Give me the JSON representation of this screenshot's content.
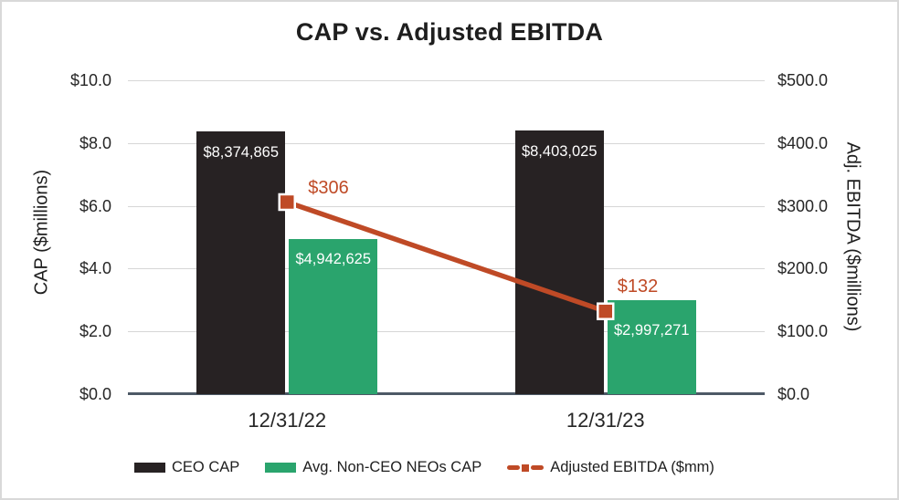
{
  "title": "CAP vs. Adjusted EBITDA",
  "chart_data": {
    "type": "bar",
    "subtype": "grouped bars with secondary-axis line",
    "title": "CAP vs. Adjusted EBITDA",
    "categories": [
      "12/31/22",
      "12/31/23"
    ],
    "series": [
      {
        "name": "CEO CAP",
        "type": "bar",
        "axis": "left",
        "color": "#272223",
        "values": [
          8374865,
          8403025
        ],
        "point_labels": [
          "$8,374,865",
          "$8,403,025"
        ]
      },
      {
        "name": "Avg. Non-CEO NEOs CAP",
        "type": "bar",
        "axis": "left",
        "color": "#2aa46d",
        "values": [
          4942625,
          2997271
        ],
        "point_labels": [
          "$4,942,625",
          "$2,997,271"
        ]
      },
      {
        "name": "Adjusted EBITDA ($mm)",
        "type": "line",
        "axis": "right",
        "color": "#bf4a26",
        "values": [
          306,
          132
        ],
        "point_labels": [
          "$306",
          "$132"
        ]
      }
    ],
    "left_axis": {
      "title": "CAP ($millions)",
      "ticks": [
        "$10.0",
        "$8.0",
        "$6.0",
        "$4.0",
        "$2.0",
        "$0.0"
      ],
      "min": 0,
      "max": 10000000,
      "unit": "$millions"
    },
    "right_axis": {
      "title": "Adj. EBITDA ($millions)",
      "ticks": [
        "$500.0",
        "$400.0",
        "$300.0",
        "$200.0",
        "$100.0",
        "$0.0"
      ],
      "min": 0,
      "max": 500,
      "unit": "$millions"
    },
    "grid": "horizontal",
    "legend_position": "bottom",
    "colors": {
      "gridline": "#d6d6d6",
      "axis_line": "#4d5966",
      "bar_label_text": "#ffffff",
      "line_label_text": "#bf4a26"
    }
  }
}
